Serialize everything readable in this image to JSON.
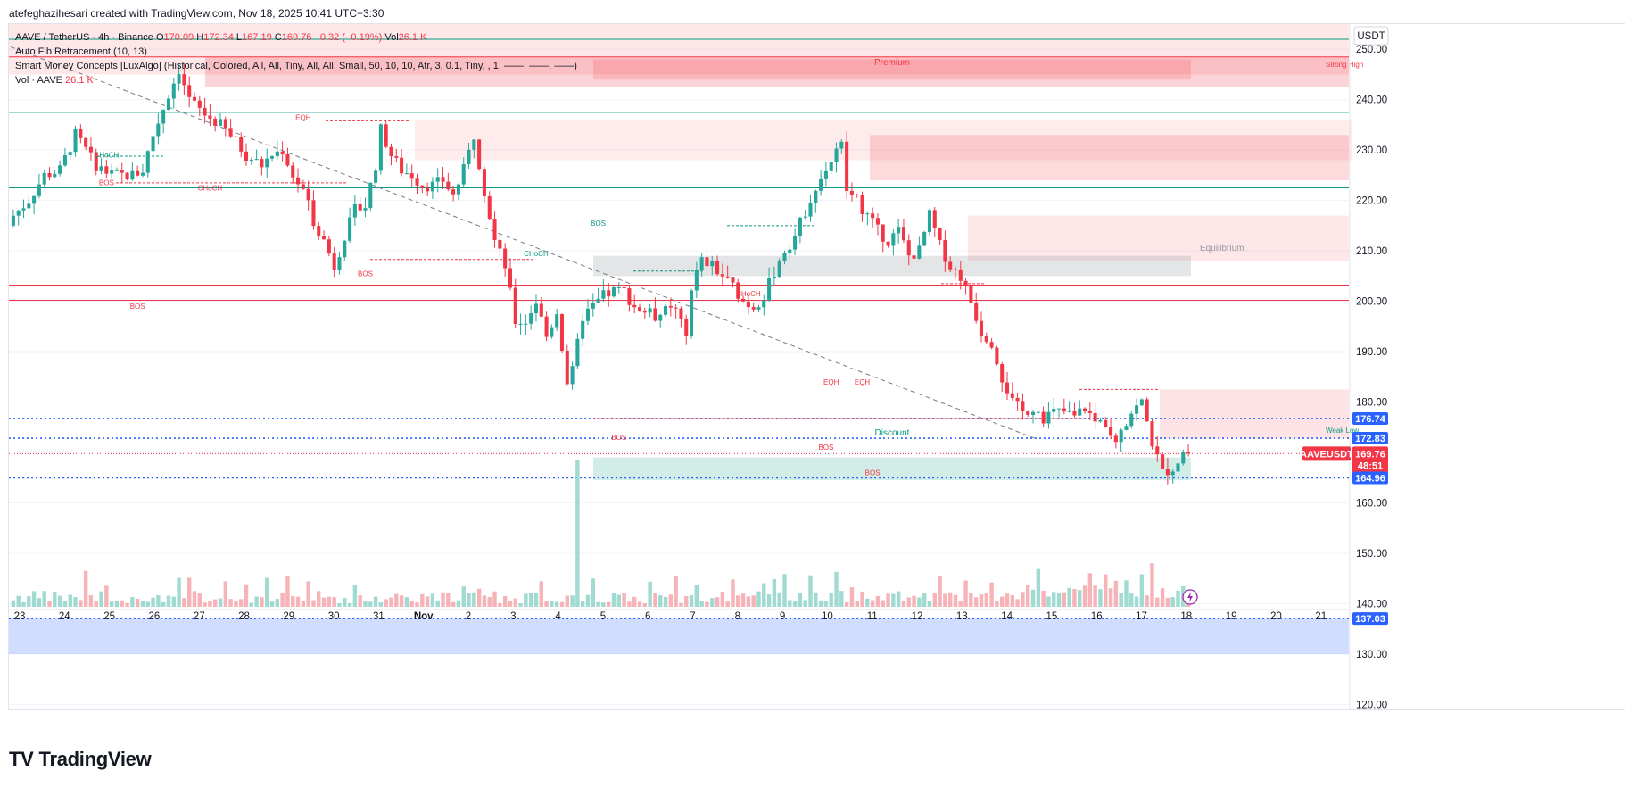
{
  "header": {
    "credit": "atefeghazihesari created with TradingView.com, Nov 18, 2025 10:41 UTC+3:30"
  },
  "legend": {
    "symbol": "AAVE / TetherUS · 4h · Binance",
    "o_label": "O",
    "o": "170.09",
    "h_label": "H",
    "h": "172.34",
    "l_label": "L",
    "l": "167.19",
    "c_label": "C",
    "c": "169.76",
    "change": "−0.32 (−0.19%)",
    "vol_label": "Vol",
    "vol": "26.1 K",
    "ind1": "Auto Fib Retracement (10, 13)",
    "ind2": "Smart Money Concepts [LuxAlgo] (Historical, Colored, All, All, Tiny, All, All, Small, 50, 10, 10, Atr, 3, 0.1, Tiny, , 1, ——, ——, ——)",
    "ind3_label": "Vol · AAVE",
    "ind3_value": "26.1 K"
  },
  "currency_label": "USDT",
  "footer": {
    "brand": "TradingView",
    "logo": "TV"
  },
  "colors": {
    "up": "#26a69a",
    "down": "#f23645",
    "up_vol": "#8fd3c8",
    "down_vol": "#f5a6ab",
    "premium": "#f23645",
    "discount": "#089981",
    "fib_blue": "#2962ff",
    "grid": "#f0f3fa"
  },
  "chart_data": {
    "type": "candlestick",
    "timeframe": "4h",
    "x_ticks": [
      "23",
      "24",
      "25",
      "26",
      "27",
      "28",
      "29",
      "30",
      "31",
      "Nov",
      "2",
      "3",
      "4",
      "5",
      "6",
      "7",
      "8",
      "9",
      "10",
      "11",
      "12",
      "13",
      "14",
      "15",
      "16",
      "17",
      "18",
      "19",
      "20",
      "21"
    ],
    "y_ticks": [
      "250.00",
      "240.00",
      "230.00",
      "220.00",
      "210.00",
      "200.00",
      "190.00",
      "180.00",
      "170.00",
      "160.00",
      "150.00",
      "140.00",
      "130.00",
      "120.00"
    ],
    "ylim": [
      119,
      255
    ],
    "price_tags": [
      {
        "label": "176.74",
        "value": 176.74,
        "color": "#2962ff"
      },
      {
        "label": "172.83",
        "value": 172.83,
        "color": "#2962ff"
      },
      {
        "label": "AAVEUSDT",
        "value": 169.76,
        "color": "#f23645",
        "sub": "169.76",
        "sub2": "48:51"
      },
      {
        "label": "164.96",
        "value": 164.96,
        "color": "#2962ff"
      },
      {
        "label": "137.03",
        "value": 137.03,
        "color": "#2962ff"
      }
    ],
    "candle_path": [
      [
        0,
        217
      ],
      [
        3,
        220
      ],
      [
        6,
        225
      ],
      [
        9,
        226
      ],
      [
        12,
        233
      ],
      [
        14,
        230
      ],
      [
        16,
        227
      ],
      [
        19,
        225
      ],
      [
        22,
        225
      ],
      [
        23,
        225
      ],
      [
        25,
        226
      ],
      [
        27,
        233
      ],
      [
        30,
        241
      ],
      [
        32,
        246
      ],
      [
        34,
        240
      ],
      [
        37,
        237
      ],
      [
        40,
        235
      ],
      [
        42,
        233
      ],
      [
        45,
        229
      ],
      [
        48,
        227
      ],
      [
        50,
        229
      ],
      [
        52,
        230
      ],
      [
        54,
        225
      ],
      [
        56,
        222
      ],
      [
        58,
        216
      ],
      [
        60,
        212
      ],
      [
        62,
        207
      ],
      [
        64,
        213
      ],
      [
        66,
        218
      ],
      [
        68,
        219
      ],
      [
        70,
        227
      ],
      [
        71,
        234
      ],
      [
        73,
        229
      ],
      [
        75,
        226
      ],
      [
        77,
        225
      ],
      [
        79,
        223
      ],
      [
        81,
        223
      ],
      [
        83,
        224
      ],
      [
        85,
        221
      ],
      [
        87,
        226
      ],
      [
        89,
        233
      ],
      [
        91,
        222
      ],
      [
        93,
        212
      ],
      [
        95,
        207
      ],
      [
        97,
        196
      ],
      [
        99,
        196
      ],
      [
        101,
        200
      ],
      [
        103,
        193
      ],
      [
        105,
        198
      ],
      [
        107,
        184
      ],
      [
        108,
        186
      ],
      [
        110,
        197
      ],
      [
        112,
        199
      ],
      [
        114,
        201
      ],
      [
        116,
        202
      ],
      [
        118,
        202
      ],
      [
        120,
        199
      ],
      [
        122,
        198
      ],
      [
        124,
        197
      ],
      [
        126,
        198
      ],
      [
        128,
        198
      ],
      [
        130,
        193
      ],
      [
        131,
        203
      ],
      [
        133,
        208
      ],
      [
        135,
        207
      ],
      [
        137,
        205
      ],
      [
        139,
        203
      ],
      [
        141,
        200
      ],
      [
        143,
        199
      ],
      [
        145,
        201
      ],
      [
        147,
        206
      ],
      [
        149,
        210
      ],
      [
        151,
        213
      ],
      [
        153,
        218
      ],
      [
        155,
        223
      ],
      [
        157,
        226
      ],
      [
        158,
        228
      ],
      [
        160,
        231
      ],
      [
        161,
        222
      ],
      [
        163,
        220
      ],
      [
        165,
        217
      ],
      [
        167,
        214
      ],
      [
        169,
        212
      ],
      [
        171,
        214
      ],
      [
        173,
        209
      ],
      [
        175,
        210
      ],
      [
        177,
        217
      ],
      [
        179,
        211
      ],
      [
        181,
        207
      ],
      [
        183,
        205
      ],
      [
        185,
        200
      ],
      [
        187,
        194
      ],
      [
        189,
        192
      ],
      [
        191,
        185
      ],
      [
        193,
        180
      ],
      [
        195,
        178
      ],
      [
        197,
        179
      ],
      [
        199,
        177
      ],
      [
        201,
        178
      ],
      [
        203,
        178
      ],
      [
        205,
        177
      ],
      [
        207,
        179
      ],
      [
        209,
        176
      ],
      [
        211,
        176
      ],
      [
        213,
        173
      ],
      [
        214,
        175
      ],
      [
        216,
        178
      ],
      [
        218,
        180
      ],
      [
        219,
        176
      ],
      [
        220,
        172
      ],
      [
        222,
        166
      ],
      [
        224,
        167
      ],
      [
        226,
        170
      ],
      [
        227,
        170
      ]
    ],
    "volume_peak_index": 109,
    "zones": {
      "premium": {
        "label": "Premium",
        "top": 255,
        "bottom": 245
      },
      "discount": {
        "label": "Discount",
        "top": 169,
        "bottom": 164.5
      },
      "equilibrium": {
        "label": "Equilibrium",
        "top": 209,
        "bottom": 205
      },
      "strong_high": "Strong High",
      "weak_low": "Weak Low"
    },
    "smc_labels": [
      {
        "text": "CHoCH",
        "bar": 18,
        "price": 228.5,
        "color": "#089981"
      },
      {
        "text": "BOS",
        "bar": 18,
        "price": 223,
        "color": "#f23645"
      },
      {
        "text": "EQH",
        "bar": 56,
        "price": 236,
        "color": "#f23645"
      },
      {
        "text": "CHoCH",
        "bar": 38,
        "price": 222,
        "color": "#f23645"
      },
      {
        "text": "BOS",
        "bar": 68,
        "price": 205,
        "color": "#f23645"
      },
      {
        "text": "BOS",
        "bar": 24,
        "price": 198.5,
        "color": "#f23645",
        "big": true
      },
      {
        "text": "CHoCH",
        "bar": 101,
        "price": 209,
        "color": "#089981"
      },
      {
        "text": "BOS",
        "bar": 113,
        "price": 215,
        "color": "#089981"
      },
      {
        "text": "CHoCH",
        "bar": 142,
        "price": 201,
        "color": "#f23645"
      },
      {
        "text": "BOS",
        "bar": 117,
        "price": 172.5,
        "color": "#f23645",
        "big": true
      },
      {
        "text": "EQH",
        "bar": 158,
        "price": 183.5,
        "color": "#f23645"
      },
      {
        "text": "EQH",
        "bar": 164,
        "price": 183.5,
        "color": "#f23645"
      },
      {
        "text": "BOS",
        "bar": 157,
        "price": 170.5,
        "color": "#f23645"
      },
      {
        "text": "BOS",
        "bar": 166,
        "price": 165.5,
        "color": "#f23645"
      }
    ]
  }
}
